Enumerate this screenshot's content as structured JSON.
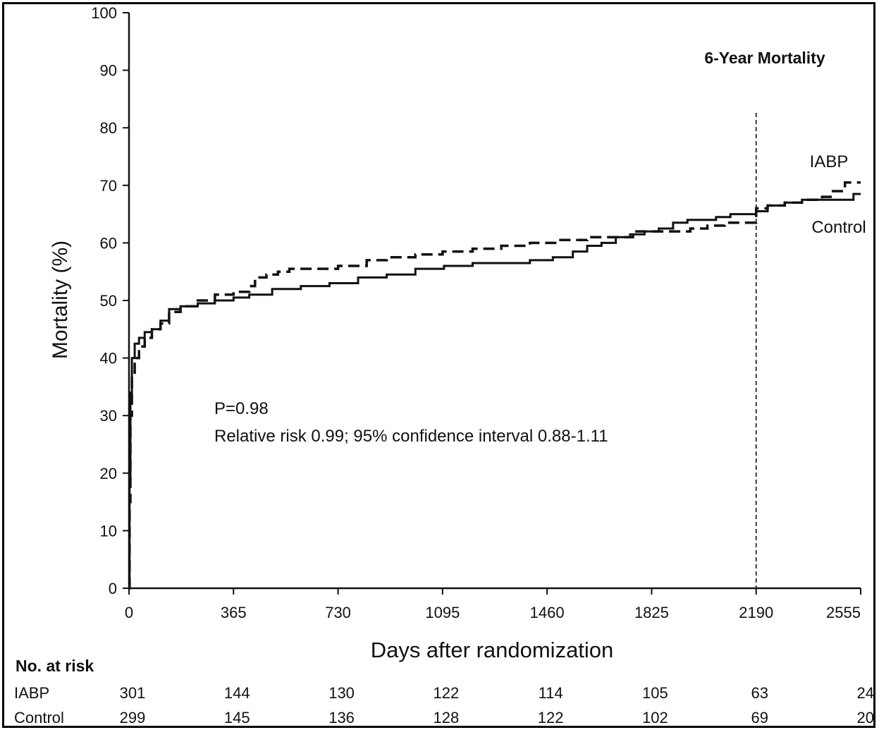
{
  "chart_data": {
    "type": "line",
    "title": "6-Year Mortality",
    "xlabel": "Days after randomization",
    "ylabel": "Mortality (%)",
    "xlim": [
      0,
      2555
    ],
    "ylim": [
      0,
      100
    ],
    "x_ticks": [
      0,
      365,
      730,
      1095,
      1460,
      1825,
      2190,
      2555
    ],
    "y_ticks": [
      0,
      10,
      20,
      30,
      40,
      50,
      60,
      70,
      80,
      90,
      100
    ],
    "grid": false,
    "reference_line_x": 2190,
    "annotations": [
      "P=0.98",
      "Relative risk 0.99; 95% confidence interval 0.88-1.11"
    ],
    "series": [
      {
        "name": "IABP",
        "style": "dashed",
        "x": [
          0,
          2,
          5,
          10,
          20,
          35,
          55,
          80,
          110,
          140,
          180,
          240,
          300,
          365,
          420,
          440,
          480,
          520,
          560,
          650,
          730,
          830,
          900,
          1000,
          1095,
          1200,
          1300,
          1400,
          1500,
          1600,
          1700,
          1760,
          1800,
          1880,
          1960,
          2020,
          2080,
          2190,
          2230,
          2290,
          2350,
          2420,
          2450,
          2500,
          2555
        ],
        "y": [
          0,
          15,
          30,
          37,
          40,
          42,
          43.5,
          45,
          46,
          48,
          49,
          50,
          51,
          51.5,
          52.5,
          54,
          54.5,
          55,
          55.5,
          55.5,
          56,
          57,
          57.5,
          58,
          58.5,
          59,
          59.5,
          60,
          60.5,
          61,
          61,
          62,
          62,
          62,
          62.5,
          63,
          63.5,
          66,
          66.5,
          67,
          67.5,
          68,
          69,
          70.5,
          70.5
        ]
      },
      {
        "name": "Control",
        "style": "solid",
        "x": [
          0,
          2,
          5,
          10,
          20,
          35,
          55,
          80,
          110,
          140,
          180,
          240,
          300,
          365,
          420,
          500,
          600,
          700,
          800,
          900,
          1000,
          1100,
          1200,
          1300,
          1400,
          1480,
          1550,
          1600,
          1650,
          1700,
          1750,
          1800,
          1850,
          1900,
          1950,
          2000,
          2050,
          2100,
          2150,
          2190,
          2230,
          2290,
          2350,
          2450,
          2530,
          2555
        ],
        "y": [
          0,
          18,
          34,
          40,
          42.5,
          43.5,
          44.5,
          45,
          46.5,
          48.5,
          49,
          49.5,
          50,
          50.5,
          51,
          52,
          52.5,
          53,
          54,
          54.5,
          55.5,
          56,
          56.5,
          56.5,
          57,
          57.5,
          58.5,
          59.5,
          60,
          61,
          61.5,
          62,
          62.5,
          63.5,
          64,
          64,
          64.5,
          65,
          65,
          65.5,
          66.5,
          67,
          67.5,
          67.5,
          68.5,
          68.5
        ]
      }
    ]
  },
  "risk_table": {
    "heading": "No. at risk",
    "rows": [
      {
        "label": "IABP",
        "values": [
          "301",
          "144",
          "130",
          "122",
          "114",
          "105",
          "63",
          "24"
        ]
      },
      {
        "label": "Control",
        "values": [
          "299",
          "145",
          "136",
          "128",
          "122",
          "102",
          "69",
          "20"
        ]
      }
    ]
  },
  "labels": {
    "iabp": "IABP",
    "control": "Control"
  }
}
